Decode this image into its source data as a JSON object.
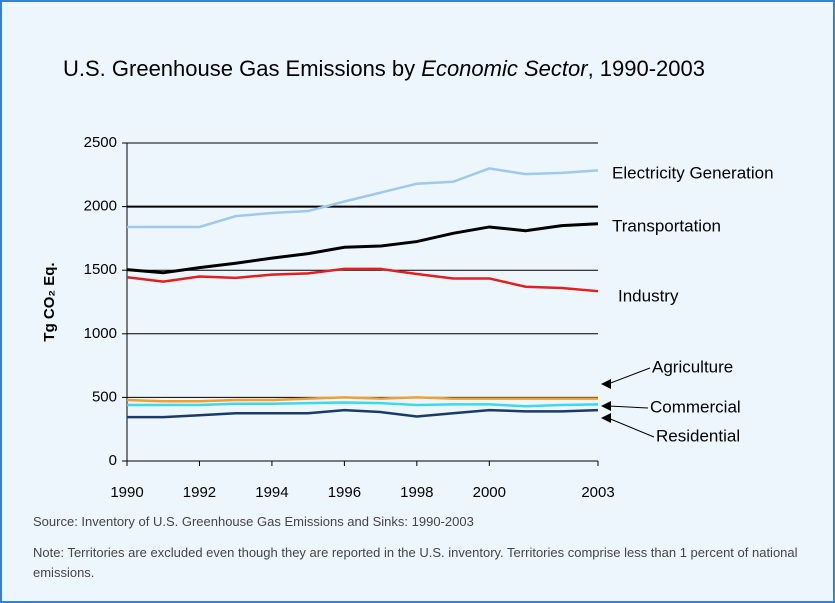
{
  "chart_data": {
    "type": "line",
    "title_parts": [
      "U.S. Greenhouse Gas Emissions by ",
      "Economic Sector",
      ", 1990-2003"
    ],
    "y_label": "Tg CO₂ Eq.",
    "x": [
      1990,
      1991,
      1992,
      1993,
      1994,
      1995,
      1996,
      1997,
      1998,
      1999,
      2000,
      2001,
      2002,
      2003
    ],
    "xlim": [
      1990,
      2003
    ],
    "xticks": [
      1990,
      1992,
      1994,
      1996,
      1998,
      2000,
      2003
    ],
    "ylim": [
      0,
      2500
    ],
    "yticks": [
      0,
      500,
      1000,
      1500,
      2000,
      2500
    ],
    "grid": true,
    "series": [
      {
        "name": "Electricity Generation",
        "color": "#9ec9ef",
        "values": [
          1840,
          1840,
          1840,
          1925,
          1950,
          1965,
          2040,
          2110,
          2180,
          2195,
          2300,
          2255,
          2265,
          2285
        ]
      },
      {
        "name": "Transportation",
        "color": "#000000",
        "values": [
          1505,
          1480,
          1520,
          1555,
          1595,
          1630,
          1680,
          1690,
          1725,
          1790,
          1840,
          1810,
          1850,
          1865
        ]
      },
      {
        "name": "Industry",
        "color": "#e02020",
        "values": [
          1445,
          1410,
          1450,
          1440,
          1465,
          1475,
          1510,
          1510,
          1470,
          1435,
          1435,
          1370,
          1360,
          1335
        ]
      },
      {
        "name": "Agriculture",
        "color": "#f0a030",
        "values": [
          480,
          470,
          470,
          480,
          480,
          490,
          500,
          490,
          500,
          490,
          490,
          490,
          490,
          490
        ]
      },
      {
        "name": "Commercial",
        "color": "#40d8e8",
        "values": [
          440,
          440,
          440,
          450,
          450,
          455,
          460,
          455,
          440,
          445,
          445,
          430,
          440,
          445
        ]
      },
      {
        "name": "Residential",
        "color": "#1a3a6a",
        "values": [
          345,
          345,
          360,
          375,
          375,
          375,
          400,
          385,
          350,
          375,
          400,
          390,
          390,
          400
        ]
      }
    ],
    "source": "Source:  Inventory of U.S. Greenhouse Gas Emissions and Sinks: 1990-2003",
    "note": "Note: Territories are excluded even though they are reported in the U.S. inventory. Territories comprise less than 1 percent of national emissions."
  }
}
